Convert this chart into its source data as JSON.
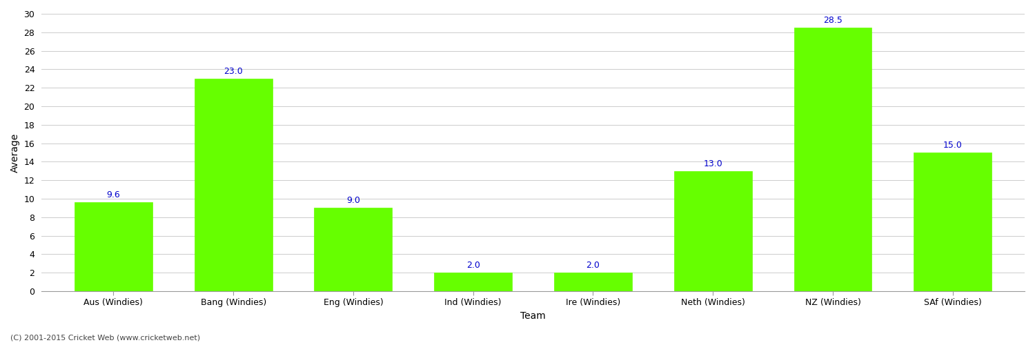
{
  "title_visible": false,
  "categories": [
    "Aus (Windies)",
    "Bang (Windies)",
    "Eng (Windies)",
    "Ind (Windies)",
    "Ire (Windies)",
    "Neth (Windies)",
    "NZ (Windies)",
    "SAf (Windies)"
  ],
  "values": [
    9.6,
    23.0,
    9.0,
    2.0,
    2.0,
    13.0,
    28.5,
    15.0
  ],
  "bar_color": "#66ff00",
  "bar_edge_color": "#66ff00",
  "label_color": "#0000cc",
  "xlabel": "Team",
  "ylabel": "Average",
  "ylim": [
    0,
    30
  ],
  "yticks": [
    0,
    2,
    4,
    6,
    8,
    10,
    12,
    14,
    16,
    18,
    20,
    22,
    24,
    26,
    28,
    30
  ],
  "grid_color": "#cccccc",
  "bg_color": "#ffffff",
  "axis_label_fontsize": 10,
  "tick_fontsize": 9,
  "annotation_fontsize": 9,
  "footer_text": "(C) 2001-2015 Cricket Web (www.cricketweb.net)",
  "bar_width": 0.65
}
